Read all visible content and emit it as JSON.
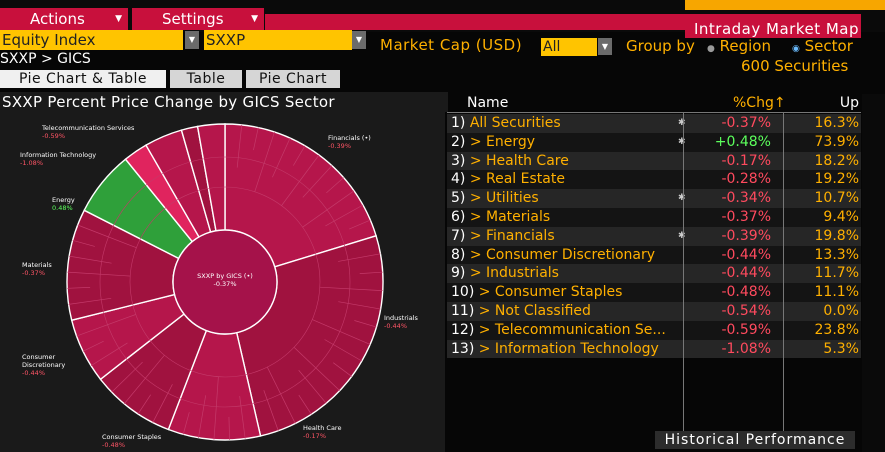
{
  "colors": {
    "accent_magenta": "#c8103c",
    "field_yellow": "#ffc400",
    "text_orange": "#ffb000",
    "negative_red": "#ff4a5e",
    "positive_green": "#5cff5c",
    "slice_red": "#a0123f",
    "slice_green": "#2fa03a"
  },
  "menu": {
    "actions": "Actions",
    "settings": "Settings"
  },
  "window_title": "Intraday Market Map",
  "controls": {
    "security_type": "Equity Index",
    "ticker": "SXXP",
    "market_cap_label": "Market Cap (USD)",
    "market_cap_value": "All",
    "group_by_label": "Group by",
    "group_options": [
      "Region",
      "Sector"
    ],
    "group_selected": "Sector",
    "securities_count": "600 Securities",
    "breadcrumb": "SXXP > GICS"
  },
  "tabs": [
    "Pie Chart & Table",
    "Table",
    "Pie Chart"
  ],
  "active_tab": "Pie Chart & Table",
  "panel_title": "SXXP Percent Price Change by GICS Sector",
  "pie": {
    "center_label": "SXXP by GICS (•)",
    "center_value": "-0.37%",
    "labels": [
      {
        "name": "Telecommunication Services",
        "value": "-0.59%"
      },
      {
        "name": "Information Technology",
        "value": "-1.08%"
      },
      {
        "name": "Energy",
        "value": "0.48%"
      },
      {
        "name": "Materials",
        "value": "-0.37%"
      },
      {
        "name": "Consumer Discretionary",
        "value": "-0.44%"
      },
      {
        "name": "Consumer Staples",
        "value": "-0.48%"
      },
      {
        "name": "Health Care",
        "value": "-0.17%"
      },
      {
        "name": "Industrials",
        "value": "-0.44%"
      },
      {
        "name": "Financials (•)",
        "value": "-0.39%"
      }
    ]
  },
  "table": {
    "headers": {
      "name": "Name",
      "chg": "%Chg↑",
      "up": "Up"
    },
    "rows": [
      {
        "num": "1)",
        "name": "All Securities",
        "chg": "-0.37%",
        "up": "16.3%",
        "star": true
      },
      {
        "num": "2)",
        "name": "> Energy",
        "chg": "+0.48%",
        "up": "73.9%",
        "star": true
      },
      {
        "num": "3)",
        "name": "> Health Care",
        "chg": "-0.17%",
        "up": "18.2%",
        "star": false
      },
      {
        "num": "4)",
        "name": "> Real Estate",
        "chg": "-0.28%",
        "up": "19.2%",
        "star": false
      },
      {
        "num": "5)",
        "name": "> Utilities",
        "chg": "-0.34%",
        "up": "10.7%",
        "star": true
      },
      {
        "num": "6)",
        "name": "> Materials",
        "chg": "-0.37%",
        "up": "9.4%",
        "star": false
      },
      {
        "num": "7)",
        "name": "> Financials",
        "chg": "-0.39%",
        "up": "19.8%",
        "star": true
      },
      {
        "num": "8)",
        "name": "> Consumer Discretionary",
        "chg": "-0.44%",
        "up": "13.3%",
        "star": false
      },
      {
        "num": "9)",
        "name": "> Industrials",
        "chg": "-0.44%",
        "up": "11.7%",
        "star": false
      },
      {
        "num": "10)",
        "name": "> Consumer Staples",
        "chg": "-0.48%",
        "up": "11.1%",
        "star": false
      },
      {
        "num": "11)",
        "name": "> Not Classified",
        "chg": "-0.54%",
        "up": "0.0%",
        "star": false
      },
      {
        "num": "12)",
        "name": "> Telecommunication Se...",
        "chg": "-0.59%",
        "up": "23.8%",
        "star": false
      },
      {
        "num": "13)",
        "name": "> Information Technology",
        "chg": "-1.08%",
        "up": "5.3%",
        "star": false
      }
    ]
  },
  "historical_button": "Historical Performance"
}
